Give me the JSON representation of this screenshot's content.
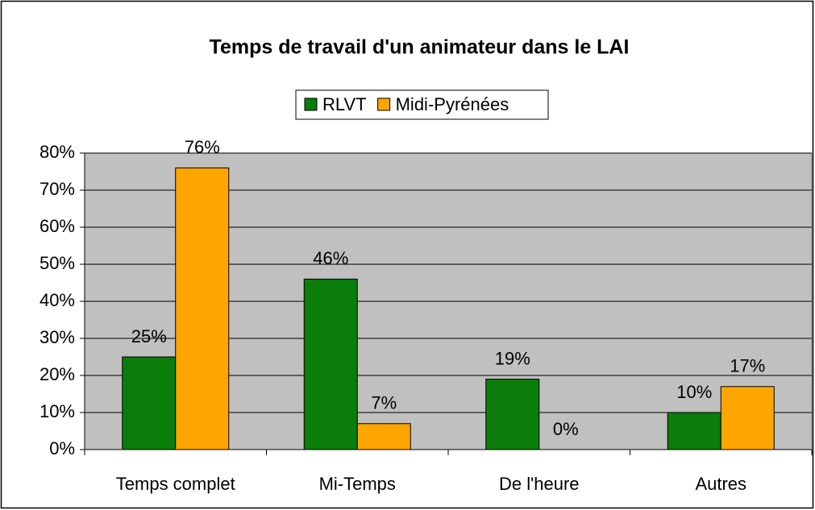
{
  "chart_data": {
    "type": "bar",
    "title": "Temps de travail d'un animateur dans le LAI",
    "categories": [
      "Temps complet",
      "Mi-Temps",
      "De l'heure",
      "Autres"
    ],
    "series": [
      {
        "name": "RLVT",
        "color": "#0a7d0a",
        "values": [
          25,
          46,
          19,
          10
        ],
        "value_labels": [
          "25%",
          "46%",
          "19%",
          "10%"
        ]
      },
      {
        "name": "Midi-Pyrénées",
        "color": "#ffa500",
        "values": [
          76,
          7,
          0,
          17
        ],
        "value_labels": [
          "76%",
          "7%",
          "0%",
          "17%"
        ]
      }
    ],
    "ylim": [
      0,
      80
    ],
    "yticks": [
      {
        "value": 0,
        "label": "0%"
      },
      {
        "value": 10,
        "label": "10%"
      },
      {
        "value": 20,
        "label": "20%"
      },
      {
        "value": 30,
        "label": "30%"
      },
      {
        "value": 40,
        "label": "40%"
      },
      {
        "value": 50,
        "label": "50%"
      },
      {
        "value": 60,
        "label": "60%"
      },
      {
        "value": 70,
        "label": "70%"
      },
      {
        "value": 80,
        "label": "80%"
      }
    ],
    "grid": true,
    "legend": "top"
  }
}
